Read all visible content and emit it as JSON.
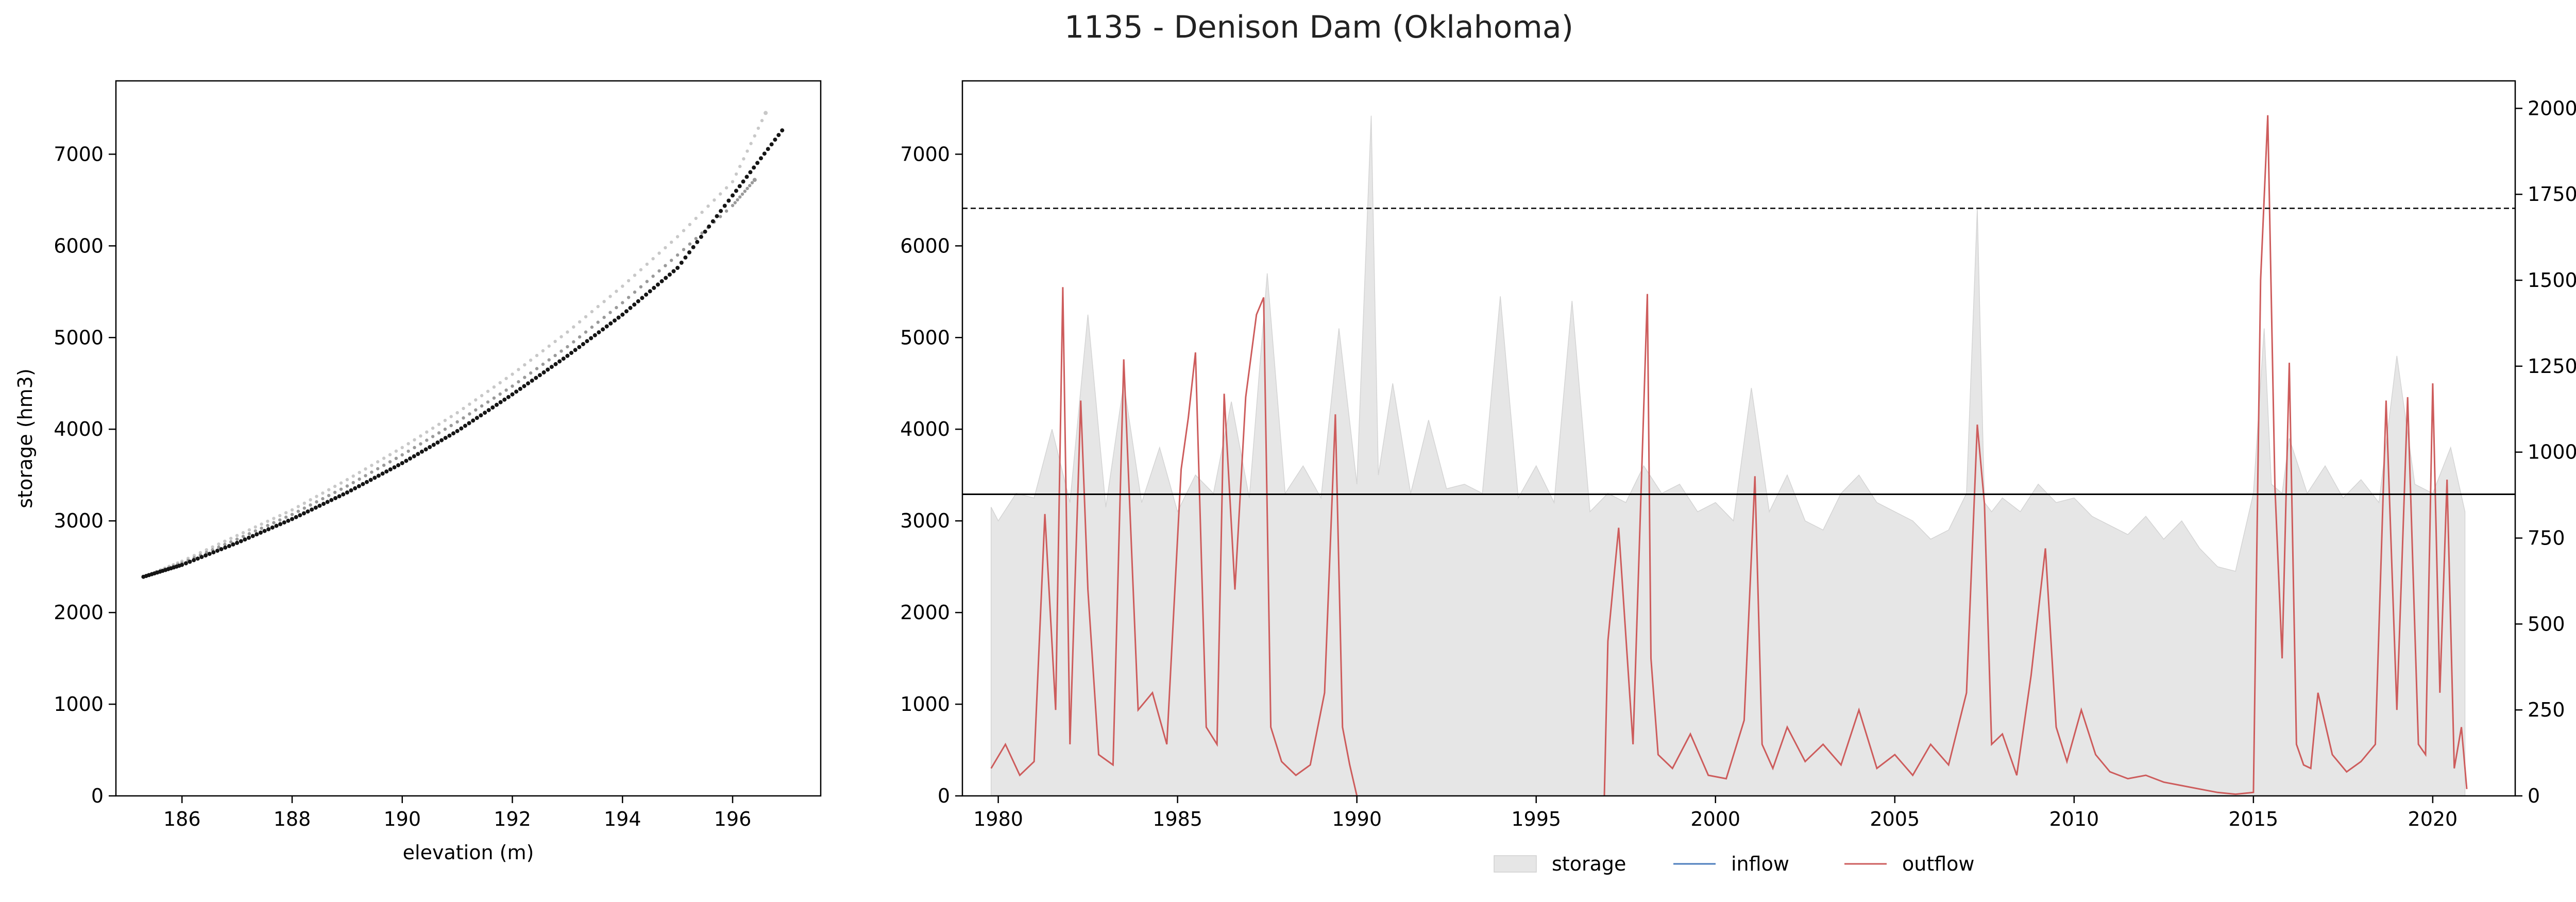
{
  "figure": {
    "title": "1135 - Denison Dam (Oklahoma)"
  },
  "colors": {
    "storage": "#e6e6e6",
    "inflow": "#4c7ebd",
    "outflow": "#cd5c5c",
    "axis": "#000000"
  },
  "chart_data": [
    {
      "type": "scatter",
      "xlabel": "elevation (m)",
      "ylabel": "storage (hm3)",
      "xlim": [
        184.8,
        197.6
      ],
      "ylim": [
        0,
        7800
      ],
      "xticks": [
        186,
        188,
        190,
        192,
        194,
        196
      ],
      "yticks": [
        0,
        1000,
        2000,
        3000,
        4000,
        5000,
        6000,
        7000
      ],
      "series": [
        {
          "shade": "light-gray",
          "points": [
            [
              185.3,
              2390
            ],
            [
              186,
              2560
            ],
            [
              187,
              2840
            ],
            [
              188,
              3120
            ],
            [
              189,
              3450
            ],
            [
              190,
              3800
            ],
            [
              191,
              4180
            ],
            [
              192,
              4600
            ],
            [
              193,
              5060
            ],
            [
              194,
              5560
            ],
            [
              195,
              6100
            ],
            [
              196,
              6700
            ],
            [
              196.6,
              7450
            ]
          ]
        },
        {
          "shade": "mid-gray",
          "points": [
            [
              185.3,
              2390
            ],
            [
              186,
              2540
            ],
            [
              187,
              2800
            ],
            [
              188,
              3070
            ],
            [
              189,
              3380
            ],
            [
              190,
              3720
            ],
            [
              191,
              4080
            ],
            [
              192,
              4470
            ],
            [
              193,
              4900
            ],
            [
              194,
              5380
            ],
            [
              195,
              5900
            ],
            [
              196,
              6440
            ],
            [
              196.4,
              6720
            ]
          ]
        },
        {
          "shade": "black",
          "points": [
            [
              185.3,
              2390
            ],
            [
              186,
              2520
            ],
            [
              187,
              2760
            ],
            [
              188,
              3020
            ],
            [
              189,
              3310
            ],
            [
              190,
              3630
            ],
            [
              191,
              3980
            ],
            [
              192,
              4380
            ],
            [
              193,
              4800
            ],
            [
              194,
              5250
            ],
            [
              195,
              5760
            ],
            [
              196,
              6550
            ],
            [
              196.9,
              7260
            ]
          ]
        }
      ]
    },
    {
      "type": "area",
      "ylabel": "",
      "y2label": "flow (m3/s)",
      "xlim": [
        1979.0,
        2022.3
      ],
      "ylim": [
        0,
        7800
      ],
      "y2lim": [
        0,
        2080
      ],
      "xticks": [
        1980,
        1985,
        1990,
        1995,
        2000,
        2005,
        2010,
        2015,
        2020
      ],
      "yticks": [
        0,
        1000,
        2000,
        3000,
        4000,
        5000,
        6000,
        7000
      ],
      "y2ticks": [
        0,
        250,
        500,
        750,
        1000,
        1250,
        1500,
        1750,
        2000
      ],
      "reference_lines": [
        {
          "style": "dashed",
          "value_storage": 6410
        },
        {
          "style": "solid",
          "value_storage": 3290
        }
      ],
      "legend": {
        "position": "bottom-center",
        "entries": [
          "storage",
          "inflow",
          "outflow"
        ]
      },
      "series": [
        {
          "name": "storage",
          "x": [
            1979.8,
            1980,
            1980.5,
            1981,
            1981.5,
            1982,
            1982.5,
            1983,
            1983.5,
            1984,
            1984.5,
            1985,
            1985.5,
            1986,
            1986.5,
            1987,
            1987.5,
            1988,
            1988.5,
            1989,
            1989.5,
            1990,
            1990.4,
            1990.6,
            1991,
            1991.5,
            1992,
            1992.5,
            1993,
            1993.5,
            1994,
            1994.5,
            1995,
            1995.5,
            1996,
            1996.5,
            1997,
            1997.5,
            1998,
            1998.5,
            1999,
            1999.5,
            2000,
            2000.5,
            2001,
            2001.5,
            2002,
            2002.5,
            2003,
            2003.5,
            2004,
            2004.5,
            2005,
            2005.5,
            2006,
            2006.5,
            2007,
            2007.3,
            2007.5,
            2007.7,
            2008,
            2008.5,
            2009,
            2009.5,
            2010,
            2010.5,
            2011,
            2011.5,
            2012,
            2012.5,
            2013,
            2013.5,
            2014,
            2014.5,
            2015,
            2015.3,
            2015.5,
            2015.8,
            2016,
            2016.5,
            2017,
            2017.5,
            2018,
            2018.5,
            2019,
            2019.5,
            2020,
            2020.5,
            2020.9
          ],
          "values": [
            3150,
            3000,
            3300,
            3250,
            4000,
            3200,
            5250,
            3150,
            4500,
            3200,
            3800,
            3100,
            3500,
            3300,
            4300,
            3250,
            5700,
            3300,
            3600,
            3250,
            5100,
            3400,
            7420,
            3500,
            4500,
            3300,
            4100,
            3350,
            3400,
            3300,
            5450,
            3250,
            3600,
            3200,
            5400,
            3100,
            3300,
            3200,
            3600,
            3300,
            3400,
            3100,
            3200,
            3000,
            4450,
            3100,
            3500,
            3000,
            2900,
            3300,
            3500,
            3200,
            3100,
            3000,
            2800,
            2900,
            3300,
            6400,
            3200,
            3100,
            3250,
            3100,
            3400,
            3200,
            3250,
            3050,
            2950,
            2850,
            3050,
            2800,
            3000,
            2700,
            2500,
            2450,
            3300,
            5100,
            3400,
            3300,
            3900,
            3300,
            3600,
            3250,
            3450,
            3200,
            4800,
            3400,
            3300,
            3800,
            3100
          ]
        },
        {
          "name": "inflow",
          "x": [],
          "values": []
        },
        {
          "name": "outflow",
          "unit_axis": "flow",
          "x": [
            1979.8,
            1980.2,
            1980.6,
            1981,
            1981.3,
            1981.6,
            1981.8,
            1982,
            1982.3,
            1982.5,
            1982.8,
            1983.2,
            1983.5,
            1983.9,
            1984.3,
            1984.7,
            1985.1,
            1985.3,
            1985.5,
            1985.8,
            1986.1,
            1986.3,
            1986.6,
            1986.9,
            1987.2,
            1987.4,
            1987.6,
            1987.9,
            1988.3,
            1988.7,
            1989.1,
            1989.4,
            1989.6,
            1989.8,
            1990,
            1996.9,
            1997,
            1997.3,
            1997.7,
            1998.1,
            1998.2,
            1998.4,
            1998.8,
            1999.3,
            1999.8,
            2000.3,
            2000.8,
            2001.1,
            2001.3,
            2001.6,
            2002,
            2002.5,
            2003,
            2003.5,
            2004,
            2004.5,
            2005,
            2005.5,
            2006,
            2006.5,
            2007,
            2007.3,
            2007.5,
            2007.7,
            2008,
            2008.4,
            2008.8,
            2009.2,
            2009.5,
            2009.8,
            2010.2,
            2010.6,
            2011,
            2011.5,
            2012,
            2012.5,
            2013,
            2013.5,
            2014,
            2014.5,
            2015,
            2015.2,
            2015.4,
            2015.6,
            2015.8,
            2016,
            2016.2,
            2016.4,
            2016.6,
            2016.8,
            2017.2,
            2017.6,
            2018,
            2018.4,
            2018.7,
            2019,
            2019.3,
            2019.6,
            2019.8,
            2020,
            2020.2,
            2020.4,
            2020.6,
            2020.8,
            2020.95
          ],
          "values": [
            80,
            150,
            60,
            100,
            820,
            250,
            1480,
            150,
            1150,
            600,
            120,
            90,
            1270,
            250,
            300,
            150,
            950,
            1100,
            1290,
            200,
            150,
            1170,
            600,
            1160,
            1400,
            1450,
            200,
            100,
            60,
            90,
            300,
            1110,
            200,
            90,
            0,
            0,
            450,
            780,
            150,
            1460,
            400,
            120,
            80,
            180,
            60,
            50,
            220,
            930,
            150,
            80,
            200,
            100,
            150,
            90,
            250,
            80,
            120,
            60,
            150,
            90,
            300,
            1080,
            850,
            150,
            180,
            60,
            350,
            720,
            200,
            100,
            250,
            120,
            70,
            50,
            60,
            40,
            30,
            20,
            10,
            5,
            10,
            1500,
            1980,
            900,
            400,
            1260,
            150,
            90,
            80,
            300,
            120,
            70,
            100,
            150,
            1150,
            250,
            1160,
            150,
            120,
            1200,
            300,
            920,
            80,
            200,
            20
          ]
        }
      ]
    }
  ]
}
